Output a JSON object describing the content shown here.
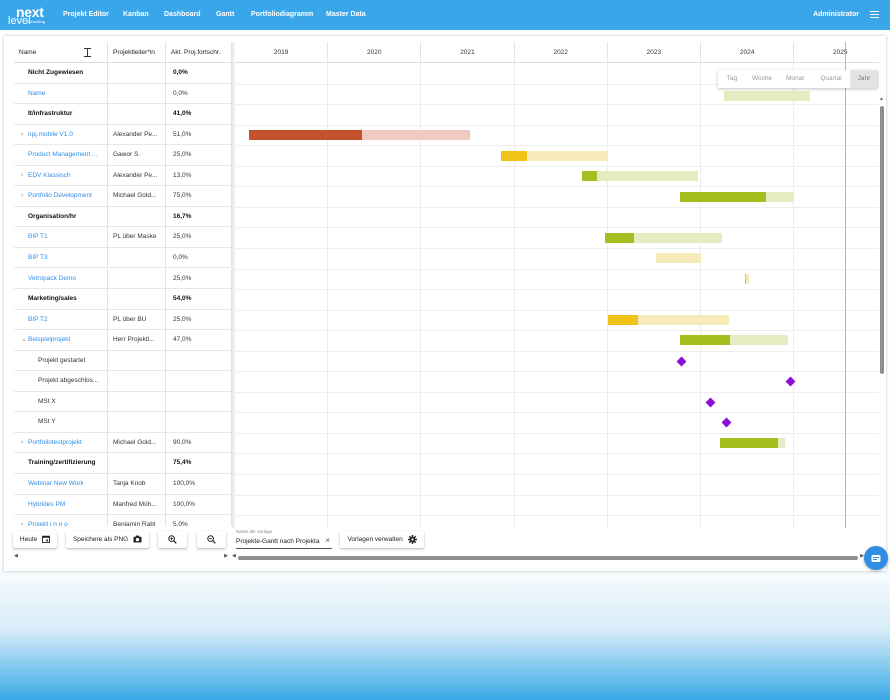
{
  "app": {
    "logo_main": "next",
    "logo_sub": "level",
    "logo_tag": "consulting"
  },
  "nav": [
    "Projekt Editor",
    "Kanban",
    "Dashboard",
    "Gantt",
    "Portfoliodiagramm",
    "Master Data"
  ],
  "user": "Administrator",
  "table": {
    "headers": [
      "Name",
      "Projektleiter*in",
      "Akt. Proj.fortschr."
    ],
    "rows": [
      {
        "name": "Nicht Zugewiesen",
        "lead": "",
        "progress": "0,0%",
        "kind": "group"
      },
      {
        "name": "Name",
        "lead": "",
        "progress": "0,0%",
        "kind": "link"
      },
      {
        "name": "It/infrastruktur",
        "lead": "",
        "progress": "41,0%",
        "kind": "group"
      },
      {
        "name": "npj.mobile V1.0",
        "lead": "Alexander Pe...",
        "progress": "51,0%",
        "kind": "link",
        "caret": "›"
      },
      {
        "name": "Product Management ...",
        "lead": "Gawor S.",
        "progress": "25,0%",
        "kind": "link"
      },
      {
        "name": "EDV Klassisch",
        "lead": "Alexander Pe...",
        "progress": "13,0%",
        "kind": "link",
        "caret": "›"
      },
      {
        "name": "Portfolio Development",
        "lead": "Michael Gold...",
        "progress": "75,0%",
        "kind": "link",
        "caret": "›"
      },
      {
        "name": "Organisation/hr",
        "lead": "",
        "progress": "16,7%",
        "kind": "group"
      },
      {
        "name": "BIP T1",
        "lead": "PL über Maske",
        "progress": "25,0%",
        "kind": "link"
      },
      {
        "name": "BIP T3",
        "lead": "",
        "progress": "0,0%",
        "kind": "link"
      },
      {
        "name": "Vetropack Demo",
        "lead": "",
        "progress": "25,0%",
        "kind": "link"
      },
      {
        "name": "Marketing/sales",
        "lead": "",
        "progress": "54,0%",
        "kind": "group"
      },
      {
        "name": "BIP T2",
        "lead": "PL über BU",
        "progress": "25,0%",
        "kind": "link"
      },
      {
        "name": "Beispielprojekt",
        "lead": "Herr Projektl...",
        "progress": "47,0%",
        "kind": "link",
        "caret": "⌄"
      },
      {
        "name": "Projekt gestartet",
        "lead": "",
        "progress": "",
        "kind": "sub"
      },
      {
        "name": "Projekt abgeschlos...",
        "lead": "",
        "progress": "",
        "kind": "sub"
      },
      {
        "name": "MSt X",
        "lead": "",
        "progress": "",
        "kind": "sub"
      },
      {
        "name": "MSt Y",
        "lead": "",
        "progress": "",
        "kind": "sub"
      },
      {
        "name": "Portfoliotestprojekt",
        "lead": "Michael Gold...",
        "progress": "90,0%",
        "kind": "link",
        "caret": "›"
      },
      {
        "name": "Training/zertifizierung",
        "lead": "",
        "progress": "75,4%",
        "kind": "group"
      },
      {
        "name": "Webinar New Work",
        "lead": "Tanja Knob",
        "progress": "100,0%",
        "kind": "link"
      },
      {
        "name": "Hybrides PM",
        "lead": "Manfred Müh...",
        "progress": "100,0%",
        "kind": "link"
      },
      {
        "name": "Projekt i n n o",
        "lead": "Benjamin Rabl",
        "progress": "5,0%",
        "kind": "link",
        "caret": "›"
      }
    ]
  },
  "gantt": {
    "years": [
      "2019",
      "2020",
      "2021",
      "2022",
      "2023",
      "2024",
      "2025"
    ],
    "zoom_options": [
      "Tag",
      "Woche",
      "Monat",
      "Quartal",
      "Jahr"
    ],
    "zoom_selected": "Jahr",
    "today": 2025.55,
    "bars": [
      {
        "row": 3,
        "start": 2019.15,
        "end": 2021.52,
        "progress": 0.51,
        "color": "#c4532d",
        "light": "#f1cabf"
      },
      {
        "row": 4,
        "start": 2021.85,
        "end": 2023.0,
        "progress": 0.25,
        "color": "#f0c417",
        "light": "#f7ecb9"
      },
      {
        "row": 5,
        "start": 2022.72,
        "end": 2023.97,
        "progress": 0.13,
        "color": "#a5bd1d",
        "light": "#e5ecc1"
      },
      {
        "row": 6,
        "start": 2023.77,
        "end": 2025.0,
        "progress": 0.75,
        "color": "#a5bd1d",
        "light": "#e5ecc1"
      },
      {
        "row": 8,
        "start": 2022.97,
        "end": 2024.22,
        "progress": 0.25,
        "color": "#a5bd1d",
        "light": "#e5ecc1"
      },
      {
        "row": 9,
        "start": 2023.52,
        "end": 2024.0,
        "progress": 0.0,
        "color": "#f0c417",
        "light": "#f7ecb9"
      },
      {
        "row": 10,
        "start": 2024.47,
        "end": 2024.52,
        "progress": 0.25,
        "color": "#f0c417",
        "light": "#f7ecb9"
      },
      {
        "row": 12,
        "start": 2023.0,
        "end": 2024.3,
        "progress": 0.25,
        "color": "#f0c417",
        "light": "#f7ecb9"
      },
      {
        "row": 13,
        "start": 2023.77,
        "end": 2024.93,
        "progress": 0.47,
        "color": "#a5bd1d",
        "light": "#e5ecc1"
      },
      {
        "row": 18,
        "start": 2024.2,
        "end": 2024.9,
        "progress": 0.9,
        "color": "#a5bd1d",
        "light": "#e5ecc1"
      },
      {
        "row": -1,
        "start": 2024.25,
        "end": 2025.17,
        "progress": 0.0,
        "color": "#e5ecc1",
        "light": "#e5ecc1"
      }
    ],
    "milestones": [
      {
        "row": 14,
        "date": 2023.79,
        "color": "#8c0fd8"
      },
      {
        "row": 15,
        "date": 2024.96,
        "color": "#8c0fd8"
      },
      {
        "row": 16,
        "date": 2024.1,
        "color": "#8c0fd8"
      },
      {
        "row": 17,
        "date": 2024.27,
        "color": "#8c0fd8"
      }
    ]
  },
  "toolbar": {
    "today": "Heute",
    "save_png": "Speichere als PNG",
    "template_label": "Name der Vorlage",
    "template_value": "Projekte-Gantt nach Projektart",
    "manage": "Vorlagen verwalten"
  }
}
